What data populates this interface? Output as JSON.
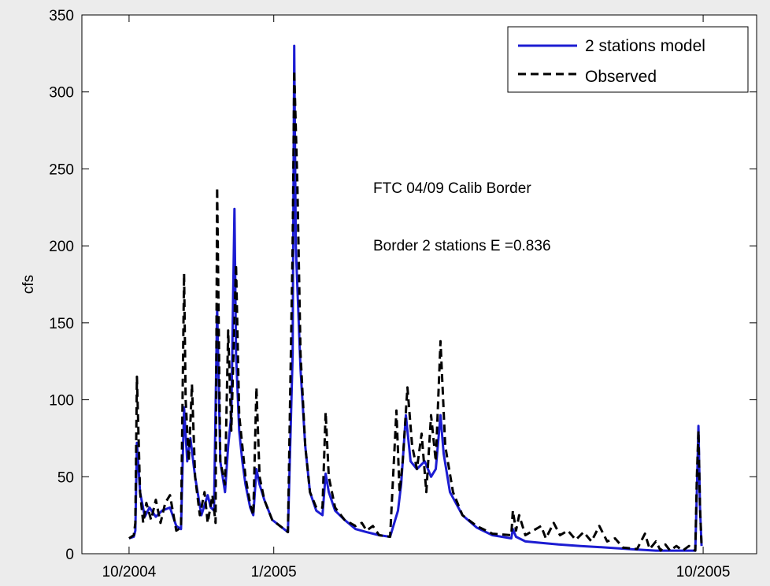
{
  "chart_data": {
    "type": "line",
    "ylabel": "cfs",
    "ylim": [
      0,
      350
    ],
    "yticks": [
      0,
      50,
      100,
      150,
      200,
      250,
      300,
      350
    ],
    "xlim": [
      "2004-09-01",
      "2005-11-04"
    ],
    "xticks": [
      {
        "date": "2004-10-01",
        "label": "10/2004"
      },
      {
        "date": "2005-01-01",
        "label": "1/2005"
      },
      {
        "date": "2005-10-01",
        "label": "10/2005"
      }
    ],
    "grid": false,
    "legend_position": "top-right",
    "annotations": [
      "FTC 04/09 Calib Border",
      "Border 2 stations E =0.836"
    ],
    "series": [
      {
        "name": "2 stations model",
        "color": "#1c1cd2",
        "style": "solid",
        "points": [
          [
            "2004-10-01",
            10
          ],
          [
            "2004-10-04",
            11
          ],
          [
            "2004-10-05",
            15
          ],
          [
            "2004-10-06",
            72
          ],
          [
            "2004-10-08",
            40
          ],
          [
            "2004-10-11",
            24
          ],
          [
            "2004-10-14",
            30
          ],
          [
            "2004-10-18",
            24
          ],
          [
            "2004-10-22",
            28
          ],
          [
            "2004-10-27",
            30
          ],
          [
            "2004-10-31",
            18
          ],
          [
            "2004-11-03",
            16
          ],
          [
            "2004-11-05",
            95
          ],
          [
            "2004-11-07",
            60
          ],
          [
            "2004-11-09",
            75
          ],
          [
            "2004-11-12",
            50
          ],
          [
            "2004-11-16",
            25
          ],
          [
            "2004-11-20",
            38
          ],
          [
            "2004-11-22",
            30
          ],
          [
            "2004-11-24",
            28
          ],
          [
            "2004-11-26",
            160
          ],
          [
            "2004-11-28",
            60
          ],
          [
            "2004-12-01",
            40
          ],
          [
            "2004-12-03",
            70
          ],
          [
            "2004-12-05",
            90
          ],
          [
            "2004-12-07",
            224
          ],
          [
            "2004-12-08",
            130
          ],
          [
            "2004-12-10",
            80
          ],
          [
            "2004-12-12",
            60
          ],
          [
            "2004-12-14",
            45
          ],
          [
            "2004-12-17",
            30
          ],
          [
            "2004-12-19",
            25
          ],
          [
            "2004-12-21",
            55
          ],
          [
            "2004-12-23",
            45
          ],
          [
            "2004-12-26",
            35
          ],
          [
            "2004-12-31",
            22
          ],
          [
            "2005-01-05",
            18
          ],
          [
            "2005-01-10",
            14
          ],
          [
            "2005-01-13",
            130
          ],
          [
            "2005-01-14",
            330
          ],
          [
            "2005-01-15",
            200
          ],
          [
            "2005-01-18",
            120
          ],
          [
            "2005-01-21",
            70
          ],
          [
            "2005-01-24",
            40
          ],
          [
            "2005-01-28",
            28
          ],
          [
            "2005-02-01",
            25
          ],
          [
            "2005-02-03",
            52
          ],
          [
            "2005-02-05",
            40
          ],
          [
            "2005-02-09",
            28
          ],
          [
            "2005-02-15",
            22
          ],
          [
            "2005-02-22",
            16
          ],
          [
            "2005-03-01",
            14
          ],
          [
            "2005-03-09",
            12
          ],
          [
            "2005-03-16",
            11
          ],
          [
            "2005-03-21",
            28
          ],
          [
            "2005-03-23",
            45
          ],
          [
            "2005-03-26",
            90
          ],
          [
            "2005-03-29",
            60
          ],
          [
            "2005-04-02",
            55
          ],
          [
            "2005-04-07",
            60
          ],
          [
            "2005-04-11",
            50
          ],
          [
            "2005-04-14",
            55
          ],
          [
            "2005-04-17",
            90
          ],
          [
            "2005-04-19",
            65
          ],
          [
            "2005-04-23",
            40
          ],
          [
            "2005-05-01",
            25
          ],
          [
            "2005-05-10",
            17
          ],
          [
            "2005-05-20",
            12
          ],
          [
            "2005-06-01",
            10
          ],
          [
            "2005-06-02",
            16
          ],
          [
            "2005-06-04",
            11
          ],
          [
            "2005-06-10",
            8
          ],
          [
            "2005-06-20",
            7
          ],
          [
            "2005-07-01",
            6
          ],
          [
            "2005-07-15",
            5
          ],
          [
            "2005-08-01",
            4
          ],
          [
            "2005-08-15",
            3
          ],
          [
            "2005-09-01",
            2
          ],
          [
            "2005-09-15",
            2
          ],
          [
            "2005-09-26",
            2
          ],
          [
            "2005-09-27",
            40
          ],
          [
            "2005-09-28",
            83
          ],
          [
            "2005-09-29",
            30
          ],
          [
            "2005-09-30",
            5
          ]
        ]
      },
      {
        "name": "Observed",
        "color": "#000000",
        "style": "dashed",
        "points": [
          [
            "2004-10-01",
            10
          ],
          [
            "2004-10-04",
            12
          ],
          [
            "2004-10-05",
            20
          ],
          [
            "2004-10-06",
            115
          ],
          [
            "2004-10-08",
            40
          ],
          [
            "2004-10-10",
            20
          ],
          [
            "2004-10-12",
            33
          ],
          [
            "2004-10-15",
            22
          ],
          [
            "2004-10-18",
            35
          ],
          [
            "2004-10-21",
            20
          ],
          [
            "2004-10-24",
            33
          ],
          [
            "2004-10-27",
            38
          ],
          [
            "2004-10-31",
            15
          ],
          [
            "2004-11-03",
            17
          ],
          [
            "2004-11-05",
            182
          ],
          [
            "2004-11-06",
            100
          ],
          [
            "2004-11-08",
            60
          ],
          [
            "2004-11-10",
            110
          ],
          [
            "2004-11-12",
            50
          ],
          [
            "2004-11-15",
            25
          ],
          [
            "2004-11-18",
            40
          ],
          [
            "2004-11-20",
            20
          ],
          [
            "2004-11-23",
            38
          ],
          [
            "2004-11-25",
            20
          ],
          [
            "2004-11-26",
            238
          ],
          [
            "2004-11-28",
            60
          ],
          [
            "2004-12-01",
            45
          ],
          [
            "2004-12-03",
            145
          ],
          [
            "2004-12-05",
            80
          ],
          [
            "2004-12-08",
            188
          ],
          [
            "2004-12-10",
            90
          ],
          [
            "2004-12-12",
            70
          ],
          [
            "2004-12-14",
            50
          ],
          [
            "2004-12-17",
            32
          ],
          [
            "2004-12-19",
            25
          ],
          [
            "2004-12-21",
            108
          ],
          [
            "2004-12-23",
            50
          ],
          [
            "2004-12-26",
            35
          ],
          [
            "2004-12-31",
            22
          ],
          [
            "2005-01-05",
            18
          ],
          [
            "2005-01-10",
            14
          ],
          [
            "2005-01-13",
            200
          ],
          [
            "2005-01-14",
            314
          ],
          [
            "2005-01-16",
            240
          ],
          [
            "2005-01-18",
            130
          ],
          [
            "2005-01-21",
            70
          ],
          [
            "2005-01-24",
            40
          ],
          [
            "2005-01-28",
            30
          ],
          [
            "2005-02-01",
            30
          ],
          [
            "2005-02-03",
            92
          ],
          [
            "2005-02-05",
            50
          ],
          [
            "2005-02-09",
            30
          ],
          [
            "2005-02-15",
            22
          ],
          [
            "2005-02-22",
            18
          ],
          [
            "2005-02-26",
            20
          ],
          [
            "2005-03-01",
            15
          ],
          [
            "2005-03-05",
            18
          ],
          [
            "2005-03-09",
            12
          ],
          [
            "2005-03-16",
            11
          ],
          [
            "2005-03-20",
            93
          ],
          [
            "2005-03-22",
            40
          ],
          [
            "2005-03-24",
            60
          ],
          [
            "2005-03-27",
            108
          ],
          [
            "2005-03-30",
            70
          ],
          [
            "2005-04-02",
            55
          ],
          [
            "2005-04-05",
            78
          ],
          [
            "2005-04-08",
            40
          ],
          [
            "2005-04-11",
            90
          ],
          [
            "2005-04-14",
            60
          ],
          [
            "2005-04-17",
            138
          ],
          [
            "2005-04-20",
            70
          ],
          [
            "2005-04-25",
            40
          ],
          [
            "2005-05-01",
            25
          ],
          [
            "2005-05-10",
            18
          ],
          [
            "2005-05-20",
            13
          ],
          [
            "2005-06-01",
            12
          ],
          [
            "2005-06-02",
            28
          ],
          [
            "2005-06-04",
            15
          ],
          [
            "2005-06-06",
            25
          ],
          [
            "2005-06-10",
            12
          ],
          [
            "2005-06-15",
            15
          ],
          [
            "2005-06-20",
            18
          ],
          [
            "2005-06-23",
            10
          ],
          [
            "2005-06-28",
            20
          ],
          [
            "2005-07-02",
            12
          ],
          [
            "2005-07-07",
            15
          ],
          [
            "2005-07-12",
            9
          ],
          [
            "2005-07-17",
            14
          ],
          [
            "2005-07-22",
            8
          ],
          [
            "2005-07-27",
            18
          ],
          [
            "2005-08-01",
            8
          ],
          [
            "2005-08-06",
            10
          ],
          [
            "2005-08-11",
            4
          ],
          [
            "2005-08-20",
            3
          ],
          [
            "2005-08-25",
            13
          ],
          [
            "2005-08-28",
            3
          ],
          [
            "2005-09-01",
            8
          ],
          [
            "2005-09-04",
            2
          ],
          [
            "2005-09-07",
            6
          ],
          [
            "2005-09-10",
            2
          ],
          [
            "2005-09-14",
            5
          ],
          [
            "2005-09-18",
            2
          ],
          [
            "2005-09-22",
            5
          ],
          [
            "2005-09-26",
            2
          ],
          [
            "2005-09-27",
            50
          ],
          [
            "2005-09-28",
            80
          ],
          [
            "2005-09-29",
            30
          ],
          [
            "2005-09-30",
            5
          ]
        ]
      }
    ]
  }
}
